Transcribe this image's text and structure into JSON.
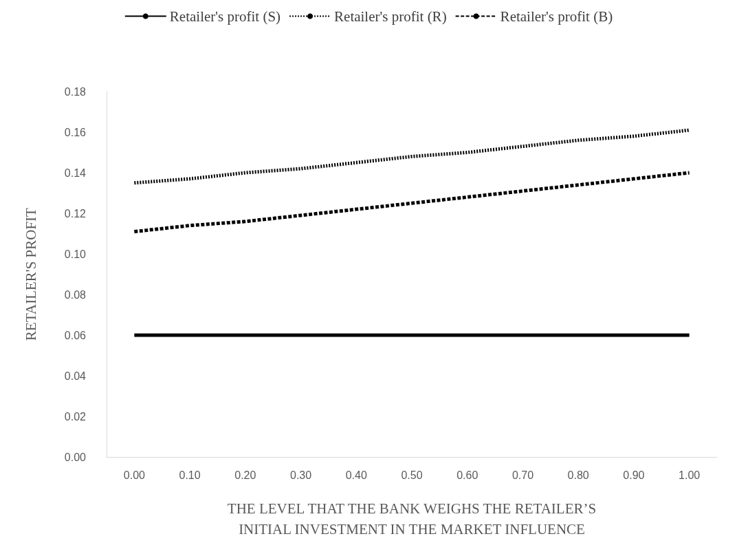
{
  "chart_data": {
    "type": "line",
    "xlabel": "THE LEVEL THAT THE BANK WEIGHS THE RETAILER’S INITIAL INVESTMENT IN THE MARKET INFLUENCE",
    "ylabel": "RETAILER'S PROFIT",
    "categories": [
      "0.00",
      "0.10",
      "0.20",
      "0.30",
      "0.40",
      "0.50",
      "0.60",
      "0.70",
      "0.80",
      "0.90",
      "1.00"
    ],
    "series": [
      {
        "name": "Retailer's profit (S)",
        "color": "#000000",
        "line_style": "solid",
        "values": [
          0.06,
          0.06,
          0.06,
          0.06,
          0.06,
          0.06,
          0.06,
          0.06,
          0.06,
          0.06,
          0.06
        ]
      },
      {
        "name": "Retailer's profit (R)",
        "color": "#000000",
        "line_style": "dotted",
        "values": [
          0.135,
          0.137,
          0.14,
          0.142,
          0.145,
          0.148,
          0.15,
          0.153,
          0.156,
          0.158,
          0.161
        ]
      },
      {
        "name": "Retailer's profit (B)",
        "color": "#000000",
        "line_style": "dashed",
        "values": [
          0.111,
          0.114,
          0.116,
          0.119,
          0.122,
          0.125,
          0.128,
          0.131,
          0.134,
          0.137,
          0.14
        ]
      }
    ],
    "ylim": [
      0,
      0.18
    ],
    "yticks": [
      {
        "value": 0,
        "label": "0.00"
      },
      {
        "value": 0.02,
        "label": "0.02"
      },
      {
        "value": 0.04,
        "label": "0.04"
      },
      {
        "value": 0.06,
        "label": "0.06"
      },
      {
        "value": 0.08,
        "label": "0.08"
      },
      {
        "value": 0.1,
        "label": "0.10"
      },
      {
        "value": 0.12,
        "label": "0.12"
      },
      {
        "value": 0.14,
        "label": "0.14"
      },
      {
        "value": 0.16,
        "label": "0.16"
      },
      {
        "value": 0.18,
        "label": "0.18"
      }
    ],
    "grid": false,
    "legend": "top",
    "marker": "none"
  }
}
